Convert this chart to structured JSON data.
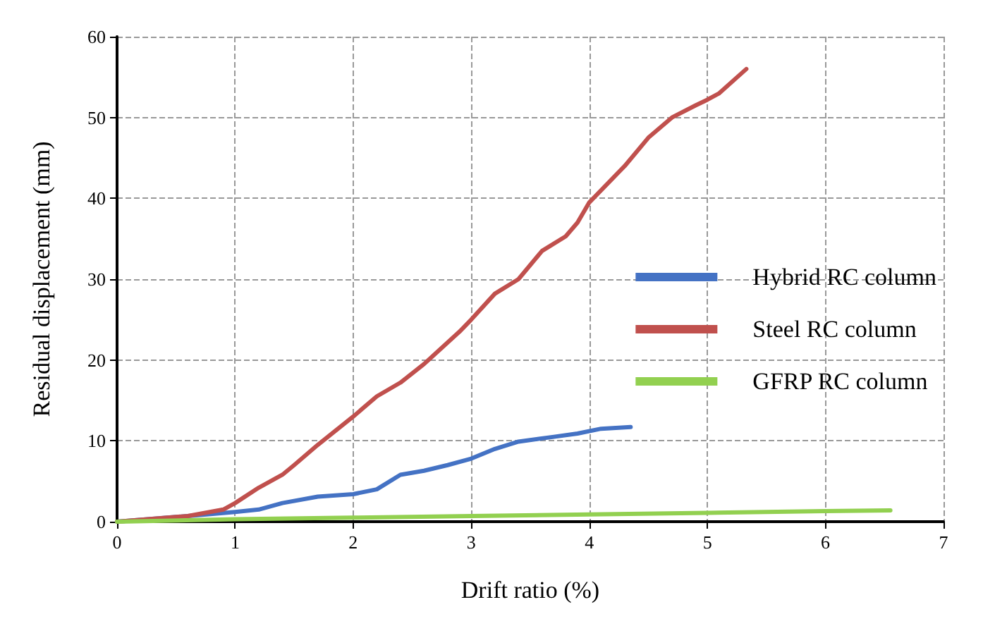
{
  "chart_data": {
    "type": "line",
    "xlabel": "Drift ratio (%)",
    "ylabel": "Residual displacement (mm)",
    "xlim": [
      0,
      7
    ],
    "xticks": [
      0,
      1,
      2,
      3,
      4,
      5,
      6,
      7
    ],
    "ylim": [
      0,
      60
    ],
    "yticks": [
      0,
      10,
      20,
      30,
      40,
      50,
      60
    ],
    "grid": true,
    "legend": "right",
    "marker": "none",
    "line_style": "solid",
    "series": [
      {
        "name": "Hybrid RC column",
        "color": "#4472c4",
        "x": [
          0,
          0.6,
          1.0,
          1.2,
          1.4,
          1.7,
          2.0,
          2.2,
          2.4,
          2.6,
          2.8,
          3.0,
          3.2,
          3.4,
          3.7,
          3.9,
          4.1,
          4.35
        ],
        "values": [
          0,
          0.7,
          1.2,
          1.5,
          2.3,
          3.1,
          3.4,
          4,
          5.8,
          6.3,
          7,
          7.8,
          9,
          9.9,
          10.5,
          10.9,
          11.5,
          11.7
        ]
      },
      {
        "name": "Steel RC column",
        "color": "#c0504d",
        "x": [
          0,
          0.6,
          0.9,
          1.0,
          1.2,
          1.4,
          1.5,
          1.7,
          2.0,
          2.2,
          2.4,
          2.6,
          2.9,
          3.0,
          3.2,
          3.4,
          3.6,
          3.8,
          3.9,
          4.0,
          4.2,
          4.3,
          4.5,
          4.7,
          4.9,
          5.0,
          5.1,
          5.33
        ],
        "values": [
          0,
          0.7,
          1.5,
          2.3,
          4.2,
          5.8,
          7,
          9.5,
          13,
          15.5,
          17.2,
          19.5,
          23.5,
          25,
          28.2,
          30,
          33.5,
          35.3,
          37,
          39.5,
          42.5,
          44,
          47.5,
          50,
          51.5,
          52.2,
          53,
          56
        ]
      },
      {
        "name": "GFRP RC column",
        "color": "#92d050",
        "x": [
          0,
          1,
          2,
          3,
          4,
          5,
          6,
          6.55
        ],
        "values": [
          0,
          0.3,
          0.5,
          0.7,
          0.9,
          1.1,
          1.3,
          1.4
        ]
      }
    ]
  }
}
